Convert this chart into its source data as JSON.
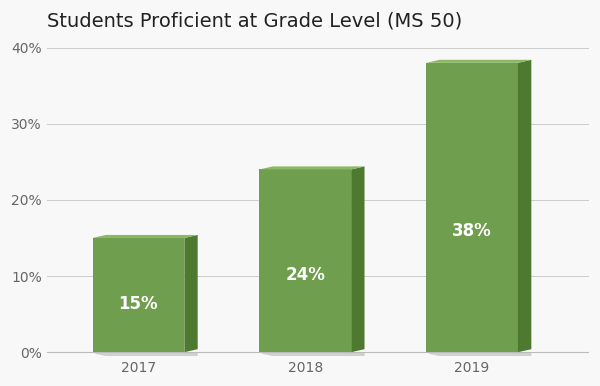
{
  "title": "Students Proficient at Grade Level (MS 50)",
  "categories": [
    "2017",
    "2018",
    "2019"
  ],
  "values": [
    15,
    24,
    38
  ],
  "labels": [
    "15%",
    "24%",
    "38%"
  ],
  "bar_color_front": "#6e9e4e",
  "bar_color_side": "#4e7a30",
  "bar_color_top": "#8ab865",
  "bar_color_shadow": "#d0d0d0",
  "ylim": [
    0,
    40
  ],
  "yticks": [
    0,
    10,
    20,
    30,
    40
  ],
  "ytick_labels": [
    "0%",
    "10%",
    "20%",
    "30%",
    "40%"
  ],
  "title_fontsize": 14,
  "label_fontsize": 12,
  "tick_fontsize": 10,
  "background_color": "#f8f8f8",
  "bar_width": 0.55,
  "label_color": "#ffffff"
}
